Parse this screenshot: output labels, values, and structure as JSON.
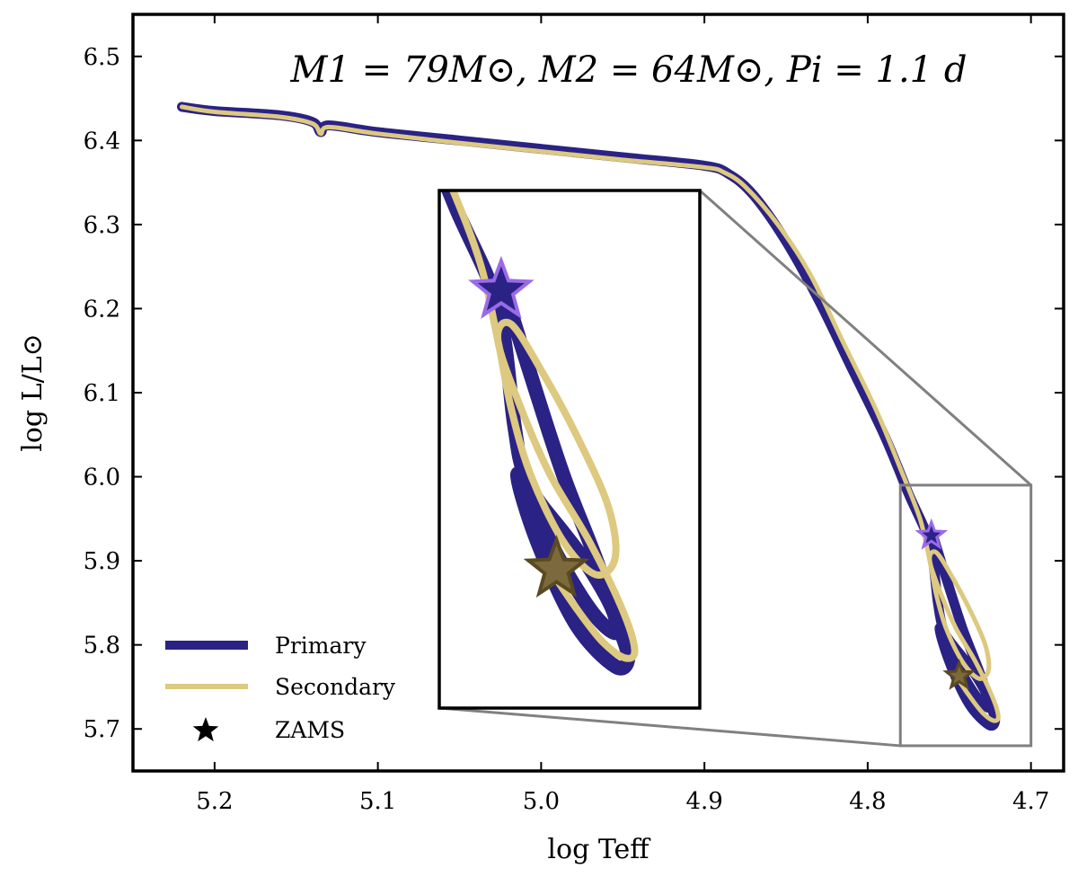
{
  "chart_data": {
    "type": "line",
    "title": "M1 = 79M⊙, M2 = 64M⊙,  Pi = 1.1 d",
    "xlabel": "log Teff",
    "ylabel": "log L/L⊙",
    "xlim": [
      5.25,
      4.68
    ],
    "ylim": [
      5.65,
      6.55
    ],
    "x_inverted": true,
    "xticks": [
      "5.2",
      "5.1",
      "5.0",
      "4.9",
      "4.8",
      "4.7"
    ],
    "yticks": [
      "5.7",
      "5.8",
      "5.9",
      "6.0",
      "6.1",
      "6.2",
      "6.3",
      "6.4",
      "6.5"
    ],
    "colors": {
      "primary": "#2b2285",
      "secondary": "#ddc97f",
      "zams_primary": "#9b6ae8",
      "zams_secondary": "#7d6a3c"
    },
    "series": [
      {
        "name": "Primary",
        "x": [
          4.76,
          4.752,
          4.742,
          4.732,
          4.725,
          4.722,
          4.726,
          4.738,
          4.75,
          4.756,
          4.748,
          4.736,
          4.727,
          4.726,
          4.734,
          4.746,
          4.754,
          4.757,
          4.762,
          4.775,
          4.79,
          4.81,
          4.83,
          4.85,
          4.87,
          4.885,
          4.9,
          4.95,
          5.0,
          5.05,
          5.1,
          5.13,
          5.135,
          5.14,
          5.16,
          5.2,
          5.22
        ],
        "y": [
          5.93,
          5.88,
          5.82,
          5.77,
          5.73,
          5.71,
          5.705,
          5.73,
          5.78,
          5.82,
          5.8,
          5.77,
          5.74,
          5.725,
          5.74,
          5.78,
          5.82,
          5.85,
          5.92,
          5.98,
          6.05,
          6.13,
          6.21,
          6.28,
          6.335,
          6.36,
          6.37,
          6.38,
          6.39,
          6.4,
          6.41,
          6.418,
          6.41,
          6.422,
          6.43,
          6.435,
          6.44
        ]
      },
      {
        "name": "Secondary",
        "x": [
          4.745,
          4.738,
          4.73,
          4.723,
          4.72,
          4.724,
          4.734,
          4.746,
          4.755,
          4.762,
          4.758,
          4.748,
          4.737,
          4.728,
          4.726,
          4.732,
          4.742,
          4.752,
          4.758,
          4.762,
          4.768,
          4.78,
          4.795,
          4.815,
          4.835,
          4.855,
          4.875,
          4.888,
          4.9,
          4.95,
          5.0,
          5.05,
          5.1,
          5.13,
          5.135,
          5.14,
          5.16,
          5.2,
          5.22
        ],
        "y": [
          5.76,
          5.74,
          5.72,
          5.71,
          5.715,
          5.74,
          5.78,
          5.82,
          5.86,
          5.9,
          5.91,
          5.88,
          5.84,
          5.8,
          5.77,
          5.76,
          5.78,
          5.82,
          5.86,
          5.9,
          5.95,
          6.01,
          6.08,
          6.16,
          6.24,
          6.3,
          6.345,
          6.362,
          6.368,
          6.377,
          6.387,
          6.397,
          6.408,
          6.416,
          6.408,
          6.42,
          6.428,
          6.434,
          6.44
        ]
      }
    ],
    "zams": [
      {
        "series": "Primary",
        "x": 4.761,
        "y": 5.93
      },
      {
        "series": "Secondary",
        "x": 4.744,
        "y": 5.763
      }
    ],
    "legend": {
      "position": "lower-left",
      "entries": [
        "Primary",
        "Secondary",
        "ZAMS"
      ]
    },
    "inset": {
      "zoom_region": {
        "xlim": [
          4.78,
          4.7
        ],
        "ylim": [
          5.68,
          5.99
        ]
      }
    }
  }
}
